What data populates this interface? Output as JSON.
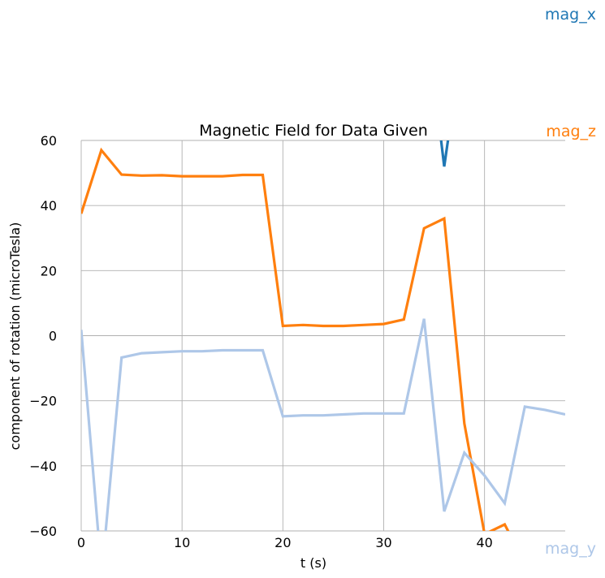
{
  "chart_data": {
    "type": "line",
    "title": "Magnetic Field for Data Given",
    "xlabel": "t (s)",
    "ylabel": "component of rotation (microTesla)",
    "xlim": [
      -2,
      48
    ],
    "ylim": [
      -60,
      60
    ],
    "xticks": [
      0,
      10,
      20,
      30,
      40
    ],
    "yticks": [
      -60,
      -40,
      -20,
      0,
      20,
      40,
      60
    ],
    "grid": true,
    "legend": "series labels at right edge",
    "series": [
      {
        "name": "mag_x",
        "color": "#1f77b4",
        "x": [
          35.5,
          36,
          36.6
        ],
        "y": [
          65,
          52,
          65
        ]
      },
      {
        "name": "mag_z",
        "color": "#ff7f0e",
        "x": [
          0,
          2,
          4,
          6,
          8,
          10,
          12,
          14,
          16,
          18,
          20,
          22,
          24,
          26,
          28,
          30,
          32,
          34,
          36,
          38,
          40,
          42,
          42.5
        ],
        "y": [
          37.5,
          57,
          49.5,
          49.2,
          49.3,
          49,
          49,
          49,
          49.4,
          49.4,
          3,
          3.3,
          3,
          3,
          3.3,
          3.6,
          5,
          33,
          36,
          -27,
          -61,
          -58,
          -61
        ]
      },
      {
        "name": "mag_y",
        "color": "#aec7e8",
        "x": [
          0,
          1.7,
          2.4,
          4,
          6,
          8,
          10,
          12,
          14,
          16,
          18,
          20,
          22,
          24,
          26,
          28,
          30,
          32,
          34,
          36,
          38,
          40,
          42,
          44,
          46,
          48
        ],
        "y": [
          1.8,
          -61,
          -61,
          -6.7,
          -5.4,
          -5.1,
          -4.8,
          -4.8,
          -4.5,
          -4.5,
          -4.5,
          -24.8,
          -24.5,
          -24.5,
          -24.2,
          -23.9,
          -23.9,
          -23.9,
          5.2,
          -54,
          -36,
          -43,
          -51.5,
          -21.8,
          -22.8,
          -24.2
        ]
      }
    ]
  }
}
